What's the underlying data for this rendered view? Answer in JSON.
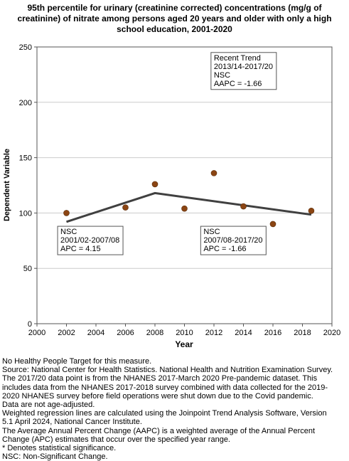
{
  "chart_data": {
    "type": "scatter",
    "title_lines": [
      "95th percentile for urinary (creatinine corrected) concentrations (mg/g of",
      "creatinine) of nitrate among  persons aged 20 years and older with only a high",
      "school education, 2001-2020"
    ],
    "xlabel": "Year",
    "ylabel": "Dependent Variable",
    "xlim": [
      2000,
      2020
    ],
    "ylim": [
      0,
      250
    ],
    "x_ticks": [
      2000,
      2002,
      2004,
      2006,
      2008,
      2010,
      2012,
      2014,
      2016,
      2018,
      2020
    ],
    "y_ticks": [
      0,
      50,
      100,
      150,
      200,
      250
    ],
    "grid": "horizontal",
    "colors": {
      "points": "#8B4513",
      "trend_line": "#404040",
      "grid": "#cccccc",
      "plot_border": "#555555"
    },
    "series": [
      {
        "kind": "observed",
        "x": [
          2002,
          2006,
          2008,
          2010,
          2012,
          2014,
          2016,
          2018.6
        ],
        "y": [
          100,
          105,
          126,
          104,
          136,
          106,
          90,
          102
        ]
      },
      {
        "kind": "trend",
        "x": [
          2002,
          2008,
          2018.6
        ],
        "y": [
          92,
          118,
          98.5
        ]
      }
    ],
    "annotations": [
      {
        "lines": [
          "Recent Trend",
          "2013/14-2017/20",
          "NSC",
          "AAPC = -1.66"
        ],
        "x": 2011.8,
        "y": 245
      },
      {
        "lines": [
          "NSC",
          "2001/02-2007/08",
          "APC =  4.15"
        ],
        "x": 2001.4,
        "y": 88
      },
      {
        "lines": [
          "NSC",
          "2007/08-2017/20",
          "APC = -1.66"
        ],
        "x": 2011.1,
        "y": 88
      }
    ]
  },
  "notes": [
    "No Healthy People Target for this measure.",
    "Source: National Center for Health Statistics. National Health and Nutrition Examination Survey.",
    "The 2017/20 data point is from the NHANES 2017-March 2020 Pre-pandemic dataset. This",
    "includes data from the NHANES 2017-2018 survey combined with data collected for the 2019-",
    "2020 NHANES survey before field operations were shut down due to the Covid pandemic.",
    "Data are not age-adjusted.",
    "Weighted regression lines are calculated using the Joinpoint Trend Analysis Software, Version",
    "5.1 April 2024, National Cancer Institute.",
    "The Average Annual Percent Change (AAPC) is a weighted average of the Annual Percent",
    "Change (APC) estimates that occur over the specified year range.",
    "* Denotes statistical significance.",
    "NSC: Non-Significant Change."
  ]
}
